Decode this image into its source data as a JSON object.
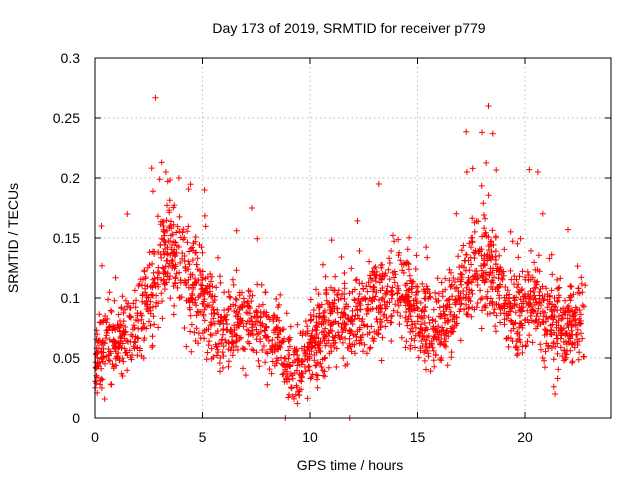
{
  "chart_data": {
    "type": "scatter",
    "title": "Day 173 of 2019, SRMTID for receiver p779",
    "xlabel": "GPS time / hours",
    "ylabel": "SRMTID / TECUs",
    "xlim": [
      0,
      24
    ],
    "ylim": [
      0,
      0.3
    ],
    "xticks": [
      0,
      5,
      10,
      15,
      20
    ],
    "xtick_labels": [
      "0",
      "5",
      "10",
      "15",
      "20"
    ],
    "yticks": [
      0,
      0.05,
      0.1,
      0.15,
      0.2,
      0.25,
      0.3
    ],
    "ytick_labels": [
      "0",
      "0.05",
      "0.1",
      "0.15",
      "0.2",
      "0.25",
      "0.3"
    ],
    "grid": true,
    "marker": "+",
    "color": "#ff0000",
    "envelope": {
      "x": [
        0,
        0.5,
        1,
        1.5,
        2,
        2.5,
        3,
        3.5,
        4,
        4.5,
        5,
        5.5,
        6,
        6.5,
        7,
        7.5,
        8,
        8.5,
        9,
        9.5,
        10,
        10.5,
        11,
        11.5,
        12,
        12.5,
        13,
        13.5,
        14,
        14.5,
        15,
        15.5,
        16,
        16.5,
        17,
        17.5,
        18,
        18.5,
        19,
        19.5,
        20,
        20.5,
        21,
        21.5,
        22,
        22.5,
        22.8
      ],
      "y": [
        0.045,
        0.06,
        0.065,
        0.07,
        0.08,
        0.1,
        0.125,
        0.135,
        0.125,
        0.11,
        0.1,
        0.085,
        0.075,
        0.08,
        0.08,
        0.075,
        0.07,
        0.07,
        0.04,
        0.045,
        0.06,
        0.07,
        0.08,
        0.085,
        0.08,
        0.09,
        0.1,
        0.105,
        0.11,
        0.1,
        0.085,
        0.075,
        0.075,
        0.085,
        0.11,
        0.12,
        0.135,
        0.12,
        0.1,
        0.085,
        0.09,
        0.1,
        0.08,
        0.08,
        0.075,
        0.08,
        0.085
      ]
    },
    "spread": 0.022,
    "point_count": 2300,
    "outliers": [
      {
        "x": 0.3,
        "y": 0.16
      },
      {
        "x": 1.5,
        "y": 0.17
      },
      {
        "x": 3.1,
        "y": 0.213
      },
      {
        "x": 3.3,
        "y": 0.205
      },
      {
        "x": 3.9,
        "y": 0.2
      },
      {
        "x": 5.1,
        "y": 0.19
      },
      {
        "x": 7.3,
        "y": 0.175
      },
      {
        "x": 13.2,
        "y": 0.195
      },
      {
        "x": 17.3,
        "y": 0.205
      },
      {
        "x": 18.0,
        "y": 0.238
      },
      {
        "x": 18.3,
        "y": 0.26
      },
      {
        "x": 18.5,
        "y": 0.237
      },
      {
        "x": 20.2,
        "y": 0.207
      },
      {
        "x": 20.6,
        "y": 0.205
      },
      {
        "x": 22.0,
        "y": 0.157
      },
      {
        "x": 21.4,
        "y": 0.02
      },
      {
        "x": 8.85,
        "y": 0.0
      },
      {
        "x": 11.85,
        "y": 0.0
      }
    ]
  }
}
